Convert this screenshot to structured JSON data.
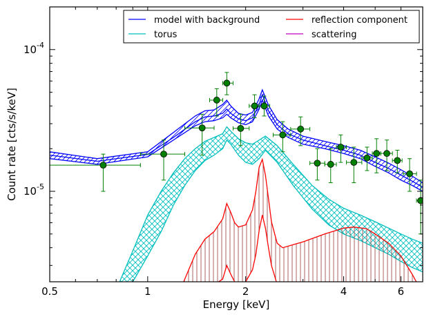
{
  "chart_data": {
    "type": "line",
    "xlabel": "Energy [keV]",
    "ylabel": "Count rate [cts/s/keV]",
    "x_scale": "log",
    "y_scale": "log",
    "xlim": [
      0.5,
      7.0
    ],
    "ylim": [
      2.3e-06,
      0.0002
    ],
    "x_ticks": [
      {
        "value": 0.5,
        "label": "0.5"
      },
      {
        "value": 1,
        "label": "1"
      },
      {
        "value": 2,
        "label": "2"
      },
      {
        "value": 4,
        "label": "4"
      },
      {
        "value": 6,
        "label": "6"
      }
    ],
    "y_ticks": [
      {
        "value": 1e-05,
        "base": "10",
        "exp": "-5"
      },
      {
        "value": 0.0001,
        "base": "10",
        "exp": "-4"
      }
    ],
    "legend": {
      "placement": "top-right",
      "columns": 2,
      "entries": [
        {
          "label": "model with background",
          "color": "#0000ff"
        },
        {
          "label": "reflection component",
          "color": "#ff0000"
        },
        {
          "label": "torus",
          "color": "#00bfbf"
        },
        {
          "label": "scattering",
          "color": "#bf00bf"
        }
      ]
    },
    "series": [
      {
        "name": "model with background",
        "color": "#0000ff",
        "style": "hatched band (three lines)",
        "x": [
          0.5,
          0.7,
          1.0,
          1.2,
          1.4,
          1.5,
          1.6,
          1.7,
          1.75,
          1.8,
          1.9,
          2.0,
          2.1,
          2.2,
          2.25,
          2.35,
          2.5,
          2.7,
          3.0,
          3.5,
          4.0,
          4.5,
          5.0,
          5.5,
          6.0,
          6.5,
          7.0
        ],
        "lower": [
          1.7e-05,
          1.55e-05,
          1.75e-05,
          2.3e-05,
          2.9e-05,
          3.1e-05,
          3.15e-05,
          3.3e-05,
          3.5e-05,
          3.3e-05,
          3.05e-05,
          2.95e-05,
          3.1e-05,
          3.8e-05,
          4.4e-05,
          3.4e-05,
          2.75e-05,
          2.4e-05,
          2.15e-05,
          2e-05,
          1.85e-05,
          1.7e-05,
          1.5e-05,
          1.35e-05,
          1.2e-05,
          1.1e-05,
          1e-05
        ],
        "mid": [
          1.8e-05,
          1.63e-05,
          1.82e-05,
          2.4e-05,
          3.1e-05,
          3.35e-05,
          3.4e-05,
          3.55e-05,
          3.8e-05,
          3.55e-05,
          3.25e-05,
          3.15e-05,
          3.3e-05,
          4.1e-05,
          4.8e-05,
          3.7e-05,
          2.95e-05,
          2.55e-05,
          2.3e-05,
          2.1e-05,
          1.95e-05,
          1.8e-05,
          1.6e-05,
          1.45e-05,
          1.3e-05,
          1.18e-05,
          1.07e-05
        ],
        "upper": [
          1.9e-05,
          1.7e-05,
          1.9e-05,
          2.6e-05,
          3.4e-05,
          3.7e-05,
          3.75e-05,
          4.1e-05,
          4.4e-05,
          4e-05,
          3.55e-05,
          3.45e-05,
          3.6e-05,
          4.5e-05,
          5.2e-05,
          4.05e-05,
          3.2e-05,
          2.75e-05,
          2.45e-05,
          2.25e-05,
          2.1e-05,
          1.95e-05,
          1.75e-05,
          1.58e-05,
          1.42e-05,
          1.28e-05,
          1.15e-05
        ]
      },
      {
        "name": "torus",
        "color": "#00bfbf",
        "style": "cross-hatched band",
        "x": [
          0.82,
          0.9,
          1.0,
          1.1,
          1.2,
          1.3,
          1.4,
          1.5,
          1.6,
          1.7,
          1.75,
          1.8,
          1.9,
          2.0,
          2.1,
          2.2,
          2.3,
          2.5,
          2.8,
          3.2,
          3.6,
          4.0,
          4.5,
          5.0,
          5.5,
          6.0,
          6.5,
          7.0
        ],
        "lower": [
          1.6e-06,
          2.3e-06,
          3.5e-06,
          5.2e-06,
          8e-06,
          1.1e-05,
          1.4e-05,
          1.65e-05,
          1.8e-05,
          2e-05,
          2.3e-05,
          2.15e-05,
          1.8e-05,
          1.6e-05,
          1.55e-05,
          1.7e-05,
          1.95e-05,
          1.6e-05,
          1.1e-05,
          7.5e-06,
          5.8e-06,
          5e-06,
          4.5e-06,
          4e-06,
          3.6e-06,
          3.2e-06,
          2.9e-06,
          2.7e-06
        ],
        "upper": [
          2.3e-06,
          3.8e-06,
          6.8e-06,
          1e-05,
          1.35e-05,
          1.7e-05,
          2e-05,
          2.25e-05,
          2.4e-05,
          2.55e-05,
          2.85e-05,
          2.65e-05,
          2.35e-05,
          2.2e-05,
          2.15e-05,
          2.3e-05,
          2.45e-05,
          2.1e-05,
          1.55e-05,
          1.1e-05,
          8.8e-06,
          7.6e-06,
          6.8e-06,
          6.1e-06,
          5.5e-06,
          5e-06,
          4.6e-06,
          4.3e-06
        ]
      },
      {
        "name": "reflection component",
        "color": "#ff0000",
        "style": "two lines with vertical hatching",
        "x": [
          1.29,
          1.4,
          1.5,
          1.6,
          1.7,
          1.75,
          1.8,
          1.85,
          1.9,
          2.0,
          2.1,
          2.15,
          2.2,
          2.25,
          2.3,
          2.35,
          2.4,
          2.5,
          2.6,
          2.8,
          3.0,
          3.5,
          4.0,
          4.3,
          4.7,
          5.0,
          5.5,
          6.0,
          6.5,
          7.0
        ],
        "lower": [
          1.6e-06,
          1.9e-06,
          2.1e-06,
          2.2e-06,
          2.4e-06,
          3e-06,
          2.6e-06,
          2.3e-06,
          2.2e-06,
          2.3e-06,
          2.8e-06,
          3.6e-06,
          5.3e-06,
          6.8e-06,
          5.5e-06,
          4e-06,
          3e-06,
          2.2e-06,
          1.9e-06,
          1.8e-06,
          1.8e-06,
          1.9e-06,
          2e-06,
          2.1e-06,
          2.1e-06,
          2.1e-06,
          2e-06,
          1.9e-06,
          1.8e-06,
          1.7e-06
        ],
        "upper": [
          2.3e-06,
          3.6e-06,
          4.6e-06,
          5.2e-06,
          6.4e-06,
          8.2e-06,
          7.1e-06,
          6e-06,
          5.6e-06,
          5.8e-06,
          7.4e-06,
          1e-05,
          1.48e-05,
          1.68e-05,
          1.3e-05,
          8.9e-06,
          6.1e-06,
          4.3e-06,
          4e-06,
          4.2e-06,
          4.4e-06,
          5e-06,
          5.5e-06,
          5.6e-06,
          5.45e-06,
          5e-06,
          4.3e-06,
          3.5e-06,
          2.6e-06,
          1.9e-06
        ]
      },
      {
        "name": "scattering",
        "color": "#bf00bf",
        "style": "line",
        "x": [],
        "y": []
      },
      {
        "name": "data",
        "color": "#008000",
        "style": "points with error bars",
        "points": [
          {
            "x": 0.73,
            "y": 1.53e-05,
            "xlo": 0.5,
            "xhi": 0.95,
            "ylo": 1e-05,
            "yhi": 1.83e-05
          },
          {
            "x": 1.12,
            "y": 1.83e-05,
            "xlo": 0.95,
            "xhi": 1.3,
            "ylo": 1.2e-05,
            "yhi": 2.3e-05
          },
          {
            "x": 1.47,
            "y": 2.8e-05,
            "xlo": 1.3,
            "xhi": 1.6,
            "ylo": 1.8e-05,
            "yhi": 3.5e-05
          },
          {
            "x": 1.63,
            "y": 4.4e-05,
            "xlo": 1.55,
            "xhi": 1.7,
            "ylo": 3.4e-05,
            "yhi": 5.3e-05
          },
          {
            "x": 1.75,
            "y": 5.8e-05,
            "xlo": 1.7,
            "xhi": 1.83,
            "ylo": 4.8e-05,
            "yhi": 6.9e-05
          },
          {
            "x": 1.93,
            "y": 2.78e-05,
            "xlo": 1.83,
            "xhi": 2.05,
            "ylo": 2.1e-05,
            "yhi": 3.5e-05
          },
          {
            "x": 2.13,
            "y": 4e-05,
            "xlo": 2.05,
            "xhi": 2.2,
            "ylo": 3.3e-05,
            "yhi": 4.8e-05
          },
          {
            "x": 2.28,
            "y": 4e-05,
            "xlo": 2.2,
            "xhi": 2.37,
            "ylo": 3.4e-05,
            "yhi": 4.7e-05
          },
          {
            "x": 2.6,
            "y": 2.5e-05,
            "xlo": 2.43,
            "xhi": 2.75,
            "ylo": 1.9e-05,
            "yhi": 3.1e-05
          },
          {
            "x": 2.95,
            "y": 2.75e-05,
            "xlo": 2.75,
            "xhi": 3.15,
            "ylo": 2.1e-05,
            "yhi": 3.35e-05
          },
          {
            "x": 3.32,
            "y": 1.58e-05,
            "xlo": 3.15,
            "xhi": 3.5,
            "ylo": 1.2e-05,
            "yhi": 2e-05
          },
          {
            "x": 3.65,
            "y": 1.55e-05,
            "xlo": 3.5,
            "xhi": 3.8,
            "ylo": 1.15e-05,
            "yhi": 2e-05
          },
          {
            "x": 3.92,
            "y": 2.05e-05,
            "xlo": 3.8,
            "xhi": 4.08,
            "ylo": 1.6e-05,
            "yhi": 2.5e-05
          },
          {
            "x": 4.3,
            "y": 1.6e-05,
            "xlo": 4.08,
            "xhi": 4.55,
            "ylo": 1.15e-05,
            "yhi": 2.05e-05
          },
          {
            "x": 4.72,
            "y": 1.72e-05,
            "xlo": 4.55,
            "xhi": 4.9,
            "ylo": 1.4e-05,
            "yhi": 2.05e-05
          },
          {
            "x": 5.05,
            "y": 1.85e-05,
            "xlo": 4.9,
            "xhi": 5.2,
            "ylo": 1.35e-05,
            "yhi": 2.35e-05
          },
          {
            "x": 5.43,
            "y": 1.85e-05,
            "xlo": 5.2,
            "xhi": 5.65,
            "ylo": 1.4e-05,
            "yhi": 2.3e-05
          },
          {
            "x": 5.85,
            "y": 1.65e-05,
            "xlo": 5.65,
            "xhi": 6.05,
            "ylo": 1.35e-05,
            "yhi": 1.95e-05
          },
          {
            "x": 6.38,
            "y": 1.33e-05,
            "xlo": 6.1,
            "xhi": 6.7,
            "ylo": 1e-05,
            "yhi": 1.7e-05
          },
          {
            "x": 6.9,
            "y": 8.6e-06,
            "xlo": 6.7,
            "xhi": 7.0,
            "ylo": 5e-06,
            "yhi": 1.2e-05
          }
        ]
      }
    ]
  }
}
